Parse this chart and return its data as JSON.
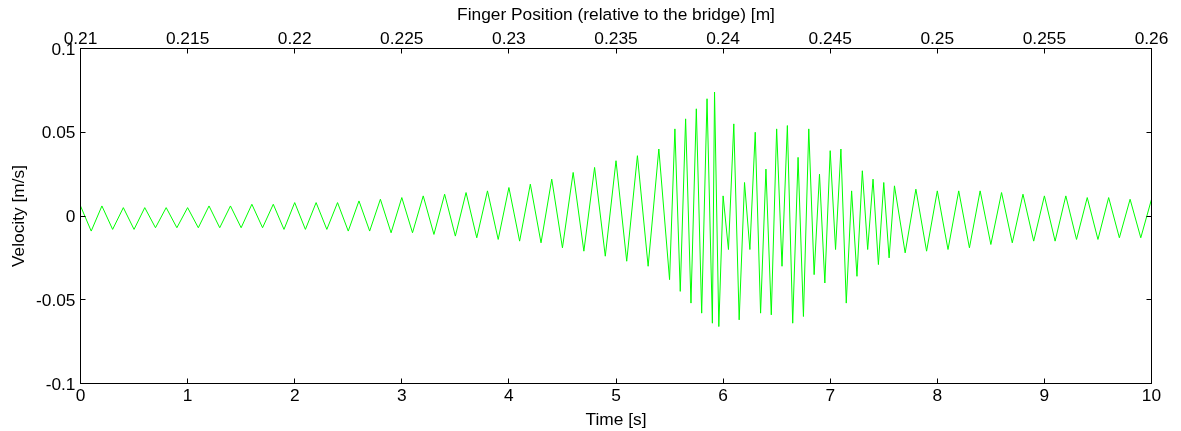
{
  "chart_data": {
    "type": "line",
    "xlabel": "Time [s]",
    "ylabel": "Velocity [m/s]",
    "x2label": "Finger Position (relative to the bridge) [m]",
    "xlim": [
      0,
      10
    ],
    "xticks": [
      0,
      1,
      2,
      3,
      4,
      5,
      6,
      7,
      8,
      9,
      10
    ],
    "x2lim": [
      0.21,
      0.26
    ],
    "x2ticks": [
      0.21,
      0.215,
      0.22,
      0.225,
      0.23,
      0.235,
      0.24,
      0.245,
      0.25,
      0.255,
      0.26
    ],
    "ylim": [
      -0.1,
      0.1
    ],
    "yticks": [
      -0.1,
      -0.05,
      0,
      0.05,
      0.1
    ],
    "grid": false,
    "marker": "none",
    "line_style": "solid",
    "series": [
      {
        "color": "#00ff00",
        "x": [
          0.0,
          0.1,
          0.2,
          0.3,
          0.4,
          0.5,
          0.6,
          0.7,
          0.8,
          0.9,
          1.0,
          1.1,
          1.2,
          1.3,
          1.4,
          1.5,
          1.6,
          1.7,
          1.8,
          1.9,
          2.0,
          2.1,
          2.2,
          2.3,
          2.4,
          2.5,
          2.6,
          2.7,
          2.8,
          2.9,
          3.0,
          3.1,
          3.2,
          3.3,
          3.4,
          3.5,
          3.6,
          3.7,
          3.8,
          3.9,
          4.0,
          4.1,
          4.2,
          4.3,
          4.4,
          4.5,
          4.6,
          4.7,
          4.8,
          4.9,
          5.0,
          5.1,
          5.2,
          5.3,
          5.4,
          5.5,
          5.55,
          5.6,
          5.65,
          5.7,
          5.75,
          5.8,
          5.85,
          5.9,
          5.92,
          5.96,
          6.0,
          6.05,
          6.1,
          6.15,
          6.2,
          6.25,
          6.3,
          6.35,
          6.4,
          6.45,
          6.5,
          6.55,
          6.6,
          6.65,
          6.7,
          6.75,
          6.8,
          6.85,
          6.9,
          6.95,
          7.0,
          7.05,
          7.1,
          7.15,
          7.2,
          7.25,
          7.3,
          7.35,
          7.4,
          7.45,
          7.5,
          7.55,
          7.6,
          7.7,
          7.8,
          7.9,
          8.0,
          8.1,
          8.2,
          8.3,
          8.4,
          8.5,
          8.6,
          8.7,
          8.8,
          8.9,
          9.0,
          9.1,
          9.2,
          9.3,
          9.4,
          9.5,
          9.6,
          9.7,
          9.8,
          9.9,
          10.0
        ],
        "values": [
          0.006,
          -0.009,
          0.006,
          -0.008,
          0.005,
          -0.008,
          0.005,
          -0.007,
          0.005,
          -0.007,
          0.005,
          -0.007,
          0.006,
          -0.007,
          0.006,
          -0.007,
          0.007,
          -0.007,
          0.007,
          -0.008,
          0.008,
          -0.008,
          0.008,
          -0.008,
          0.008,
          -0.009,
          0.009,
          -0.009,
          0.01,
          -0.01,
          0.011,
          -0.01,
          0.012,
          -0.011,
          0.013,
          -0.012,
          0.014,
          -0.013,
          0.015,
          -0.014,
          0.017,
          -0.015,
          0.019,
          -0.016,
          0.022,
          -0.019,
          0.026,
          -0.021,
          0.029,
          -0.024,
          0.033,
          -0.027,
          0.036,
          -0.03,
          0.04,
          -0.038,
          0.052,
          -0.045,
          0.058,
          -0.052,
          0.064,
          -0.058,
          0.07,
          -0.064,
          0.074,
          -0.066,
          0.012,
          -0.02,
          0.055,
          -0.062,
          0.02,
          -0.02,
          0.05,
          -0.058,
          0.028,
          -0.059,
          0.052,
          -0.03,
          0.054,
          -0.064,
          0.035,
          -0.06,
          0.052,
          -0.035,
          0.025,
          -0.04,
          0.039,
          -0.02,
          0.04,
          -0.052,
          0.015,
          -0.036,
          0.027,
          -0.02,
          0.022,
          -0.029,
          0.02,
          -0.025,
          0.018,
          -0.022,
          0.016,
          -0.021,
          0.015,
          -0.02,
          0.015,
          -0.019,
          0.015,
          -0.017,
          0.014,
          -0.016,
          0.013,
          -0.015,
          0.012,
          -0.015,
          0.012,
          -0.014,
          0.011,
          -0.014,
          0.011,
          -0.013,
          0.01,
          -0.013,
          0.01
        ]
      }
    ]
  }
}
